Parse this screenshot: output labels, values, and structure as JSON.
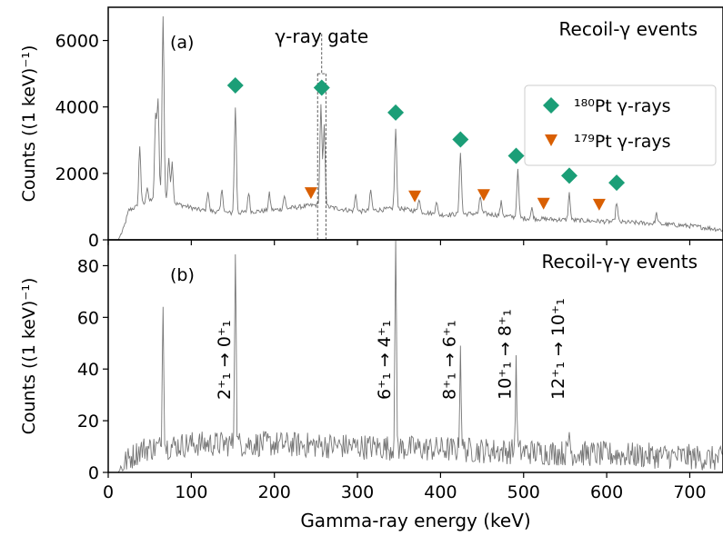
{
  "chart_data": [
    {
      "type": "line",
      "panel_label": "(a)",
      "title": "Recoil-γ events",
      "ylabel": "Counts ((1 keV)⁻¹)",
      "xlim": [
        0,
        740
      ],
      "ylim": [
        0,
        7000
      ],
      "yticks": [
        0,
        2000,
        4000,
        6000
      ],
      "gate_label": "γ-ray gate",
      "gate_range": [
        252,
        262
      ],
      "spectrum": {
        "color": "#777777",
        "background": [
          [
            0,
            0
          ],
          [
            12,
            0
          ],
          [
            18,
            300
          ],
          [
            25,
            900
          ],
          [
            35,
            1000
          ],
          [
            50,
            1150
          ],
          [
            60,
            1300
          ],
          [
            80,
            1100
          ],
          [
            110,
            900
          ],
          [
            150,
            800
          ],
          [
            200,
            900
          ],
          [
            250,
            1050
          ],
          [
            300,
            850
          ],
          [
            350,
            950
          ],
          [
            400,
            750
          ],
          [
            450,
            800
          ],
          [
            500,
            650
          ],
          [
            550,
            600
          ],
          [
            600,
            550
          ],
          [
            650,
            500
          ],
          [
            700,
            420
          ],
          [
            740,
            300
          ]
        ],
        "peaks": [
          [
            38,
            1800
          ],
          [
            47,
            500
          ],
          [
            57,
            2400
          ],
          [
            60,
            2800
          ],
          [
            66,
            5500
          ],
          [
            73,
            1300
          ],
          [
            77,
            1200
          ],
          [
            120,
            600
          ],
          [
            137,
            700
          ],
          [
            153,
            3200
          ],
          [
            169,
            600
          ],
          [
            194,
            500
          ],
          [
            212,
            400
          ],
          [
            256,
            3000
          ],
          [
            260,
            2400
          ],
          [
            298,
            500
          ],
          [
            316,
            600
          ],
          [
            346,
            2400
          ],
          [
            374,
            400
          ],
          [
            395,
            400
          ],
          [
            424,
            1900
          ],
          [
            448,
            500
          ],
          [
            473,
            400
          ],
          [
            493,
            1400
          ],
          [
            510,
            300
          ],
          [
            555,
            800
          ],
          [
            612,
            600
          ],
          [
            660,
            300
          ]
        ]
      },
      "series": [
        {
          "name": "¹⁸⁰Pt γ-rays",
          "marker": "diamond",
          "color": "#1b9e77",
          "x": [
            153,
            257,
            346,
            424,
            491,
            555,
            612
          ],
          "y": [
            4650,
            4580,
            3830,
            3020,
            2530,
            1930,
            1720
          ]
        },
        {
          "name": "¹⁷⁹Pt γ-rays",
          "marker": "triangle-down",
          "color": "#d95f02",
          "x": [
            244,
            369,
            452,
            524,
            591
          ],
          "y": [
            1420,
            1320,
            1360,
            1100,
            1070
          ]
        }
      ],
      "legend": "upper right"
    },
    {
      "type": "line",
      "panel_label": "(b)",
      "title": "Recoil-γ-γ events",
      "xlabel": "Gamma-ray energy (keV)",
      "ylabel": "Counts ((1 keV)⁻¹)",
      "xlim": [
        0,
        740
      ],
      "ylim": [
        0,
        90
      ],
      "xticks": [
        0,
        100,
        200,
        300,
        400,
        500,
        600,
        700
      ],
      "yticks": [
        0,
        20,
        40,
        60,
        80
      ],
      "spectrum": {
        "color": "#777777",
        "background": [
          [
            0,
            0
          ],
          [
            12,
            0
          ],
          [
            20,
            4
          ],
          [
            40,
            9
          ],
          [
            100,
            11
          ],
          [
            200,
            11
          ],
          [
            300,
            10
          ],
          [
            400,
            9
          ],
          [
            500,
            8
          ],
          [
            600,
            7
          ],
          [
            700,
            6
          ],
          [
            740,
            5
          ]
        ],
        "peaks": [
          [
            66,
            58
          ],
          [
            153,
            78
          ],
          [
            346,
            82
          ],
          [
            424,
            40
          ],
          [
            491,
            33
          ],
          [
            555,
            9
          ]
        ]
      },
      "transitions": [
        {
          "energy": 153,
          "label": "2⁺₁ → 0⁺₁"
        },
        {
          "energy": 346,
          "label": "6⁺₁ → 4⁺₁"
        },
        {
          "energy": 424,
          "label": "8⁺₁ → 6⁺₁"
        },
        {
          "energy": 491,
          "label": "10⁺₁ → 8⁺₁"
        },
        {
          "energy": 555,
          "label": "12⁺₁ → 10⁺₁"
        }
      ]
    }
  ]
}
